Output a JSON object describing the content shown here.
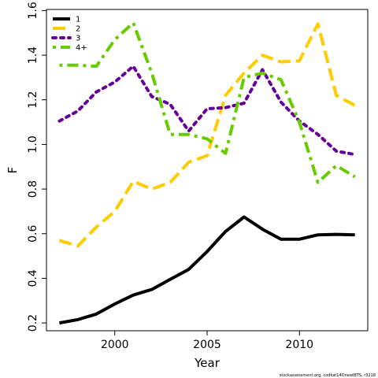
{
  "chart_data": {
    "type": "line",
    "xlabel": "Year",
    "ylabel": "F",
    "xlim": [
      1996.3,
      2013.7
    ],
    "ylim": [
      0.165,
      1.605
    ],
    "x_ticks": [
      2000,
      2005,
      2010
    ],
    "y_ticks": [
      0.2,
      0.4,
      0.6,
      0.8,
      1.0,
      1.2,
      1.4,
      1.6
    ],
    "x_tick_labels": [
      "2000",
      "2005",
      "2010"
    ],
    "y_tick_labels": [
      "0.2",
      "0.4",
      "0.6",
      "0.8",
      "1.0",
      "1.2",
      "1.4",
      "1.6"
    ],
    "grid": false,
    "legend_position": "top-left",
    "x": [
      1997,
      1998,
      1999,
      2000,
      2001,
      2002,
      2003,
      2004,
      2005,
      2006,
      2007,
      2008,
      2009,
      2010,
      2011,
      2012,
      2013
    ],
    "series": [
      {
        "name": "1",
        "color": "#000000",
        "dash": "solid",
        "values": [
          0.2,
          0.215,
          0.24,
          0.285,
          0.325,
          0.35,
          0.395,
          0.44,
          0.52,
          0.61,
          0.675,
          0.62,
          0.575,
          0.575,
          0.595,
          0.597,
          0.595
        ]
      },
      {
        "name": "2",
        "color": "#FFCC00",
        "dash": "dashed",
        "values": [
          0.57,
          0.545,
          0.63,
          0.7,
          0.835,
          0.8,
          0.83,
          0.92,
          0.95,
          1.22,
          1.32,
          1.4,
          1.37,
          1.375,
          1.54,
          1.22,
          1.175
        ]
      },
      {
        "name": "3",
        "color": "#660099",
        "dash": "dotted",
        "values": [
          1.105,
          1.15,
          1.235,
          1.28,
          1.35,
          1.215,
          1.18,
          1.06,
          1.16,
          1.165,
          1.185,
          1.335,
          1.19,
          1.105,
          1.045,
          0.97,
          0.955
        ]
      },
      {
        "name": "4+",
        "color": "#66CC00",
        "dash": "dotdash",
        "values": [
          1.355,
          1.355,
          1.35,
          1.47,
          1.545,
          1.32,
          1.045,
          1.045,
          1.025,
          0.96,
          1.3,
          1.32,
          1.29,
          1.1,
          0.83,
          0.905,
          0.855
        ]
      }
    ]
  },
  "footer": {
    "credit": "stockassessment.org, codkat14OnewIBTS, r3218"
  }
}
